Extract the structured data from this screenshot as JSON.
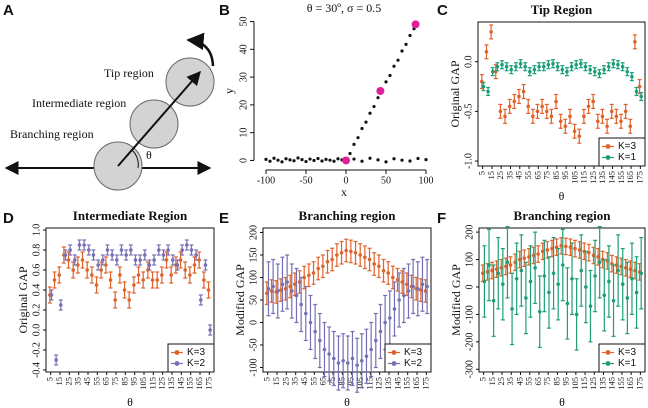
{
  "chart_data": [
    {
      "type": "diagram",
      "panel": "A",
      "labels": [
        "Tip region",
        "Intermediate region",
        "Branching region"
      ],
      "angle_label": "θ"
    },
    {
      "type": "scatter",
      "panel": "B",
      "title": "θ = 30º, σ = 0.5",
      "x_label": "x",
      "y_label": "y",
      "xlim": [
        -110,
        105
      ],
      "xticks": [
        -100,
        -50,
        0,
        50,
        100
      ],
      "ylim": [
        -2,
        52
      ],
      "yticks": [
        0,
        10,
        20,
        30,
        40,
        50
      ],
      "series": [
        {
          "color": "#111111",
          "x": [
            -100,
            -95,
            -90,
            -85,
            -80,
            -75,
            -70,
            -65,
            -60,
            -55,
            -50,
            -45,
            -40,
            -35,
            -30,
            -25,
            -20,
            -15,
            -10,
            -5,
            0,
            5,
            10,
            15,
            20,
            25,
            30,
            35,
            40,
            45,
            50,
            55,
            60,
            65,
            70,
            75,
            80,
            85,
            10,
            20,
            30,
            40,
            50,
            60,
            70,
            80,
            90,
            100
          ],
          "values": [
            0.4,
            -0.3,
            0.8,
            0.1,
            -0.5,
            0.6,
            0.2,
            -0.1,
            0.9,
            0.3,
            -0.4,
            0.5,
            0.0,
            0.7,
            -0.2,
            0.4,
            0.1,
            -0.3,
            0.6,
            0.2,
            0.3,
            2.5,
            5.8,
            8.2,
            11.5,
            13.8,
            17.0,
            19.4,
            22.6,
            25.1,
            28.3,
            30.6,
            33.9,
            36.1,
            39.4,
            41.8,
            45.0,
            47.4,
            0.5,
            -0.3,
            0.8,
            0.2,
            -0.5,
            0.6,
            0.1,
            -0.2,
            0.7,
            0.3
          ]
        },
        {
          "color": "#e0209a",
          "x": [
            0,
            43,
            87
          ],
          "values": [
            0,
            25,
            49
          ]
        }
      ]
    },
    {
      "type": "errorbar",
      "panel": "C",
      "title": "Tip Region",
      "x_label": "θ",
      "y_label": "Original GAP",
      "xlim": [
        0,
        180
      ],
      "xticks": [
        5,
        15,
        25,
        35,
        45,
        55,
        65,
        75,
        85,
        95,
        105,
        115,
        125,
        135,
        145,
        155,
        165,
        175
      ],
      "ylim": [
        -1.05,
        0.4
      ],
      "yticks": [
        {
          "value": -1,
          "label": "-1.0"
        },
        -0.5,
        {
          "value": 0,
          "label": "0.0"
        }
      ],
      "legend": "lower right",
      "x": [
        5,
        10,
        15,
        20,
        25,
        30,
        35,
        40,
        45,
        50,
        55,
        60,
        65,
        70,
        75,
        80,
        85,
        90,
        95,
        100,
        105,
        110,
        115,
        120,
        125,
        130,
        135,
        140,
        145,
        150,
        155,
        160,
        165,
        170,
        175
      ],
      "series": [
        {
          "name": "K=3",
          "color": "#e0622a",
          "values": [
            -0.2,
            0.1,
            0.3,
            -0.1,
            -0.5,
            -0.55,
            -0.45,
            -0.4,
            -0.35,
            -0.3,
            -0.45,
            -0.55,
            -0.5,
            -0.45,
            -0.5,
            -0.55,
            -0.4,
            -0.6,
            -0.65,
            -0.55,
            -0.7,
            -0.75,
            -0.55,
            -0.45,
            -0.4,
            -0.6,
            -0.55,
            -0.65,
            -0.5,
            -0.55,
            -0.6,
            -0.5,
            -0.65,
            0.2,
            -0.25
          ],
          "errors": [
            0.07,
            0.07,
            0.07,
            0.07,
            0.07,
            0.07,
            0.07,
            0.07,
            0.07,
            0.07,
            0.07,
            0.07,
            0.07,
            0.07,
            0.07,
            0.07,
            0.07,
            0.07,
            0.07,
            0.07,
            0.07,
            0.07,
            0.07,
            0.07,
            0.07,
            0.07,
            0.07,
            0.07,
            0.07,
            0.07,
            0.07,
            0.07,
            0.07,
            0.07,
            0.07
          ]
        },
        {
          "name": "K=1",
          "color": "#1e9e78",
          "values": [
            -0.25,
            -0.3,
            -0.1,
            -0.05,
            -0.03,
            -0.05,
            -0.08,
            -0.05,
            -0.02,
            -0.05,
            -0.1,
            -0.08,
            -0.05,
            -0.05,
            -0.03,
            -0.02,
            -0.05,
            -0.08,
            -0.1,
            -0.05,
            -0.03,
            -0.02,
            -0.05,
            -0.08,
            -0.1,
            -0.12,
            -0.08,
            -0.05,
            -0.02,
            -0.03,
            -0.05,
            -0.1,
            -0.15,
            -0.3,
            -0.35
          ],
          "errors": [
            0.04,
            0.04,
            0.04,
            0.04,
            0.04,
            0.04,
            0.04,
            0.04,
            0.04,
            0.04,
            0.04,
            0.04,
            0.04,
            0.04,
            0.04,
            0.04,
            0.04,
            0.04,
            0.04,
            0.04,
            0.04,
            0.04,
            0.04,
            0.04,
            0.04,
            0.04,
            0.04,
            0.04,
            0.04,
            0.04,
            0.04,
            0.04,
            0.04,
            0.04,
            0.04
          ]
        }
      ]
    },
    {
      "type": "errorbar",
      "panel": "D",
      "title": "Intermediate Region",
      "x_label": "θ",
      "y_label": "Original GAP",
      "xlim": [
        0,
        180
      ],
      "xticks": [
        5,
        15,
        25,
        35,
        45,
        55,
        65,
        75,
        85,
        95,
        105,
        115,
        125,
        135,
        145,
        155,
        165,
        175
      ],
      "ylim": [
        -0.42,
        1.02
      ],
      "yticks": [
        -0.4,
        -0.2,
        {
          "value": 0,
          "label": "0.0"
        },
        0.2,
        0.4,
        0.6,
        0.8,
        {
          "value": 1,
          "label": "1.0"
        }
      ],
      "legend": "lower right",
      "x": [
        5,
        10,
        15,
        20,
        25,
        30,
        35,
        40,
        45,
        50,
        55,
        60,
        65,
        70,
        75,
        80,
        85,
        90,
        95,
        100,
        105,
        110,
        115,
        120,
        125,
        130,
        135,
        140,
        145,
        150,
        155,
        160,
        165,
        170,
        175
      ],
      "series": [
        {
          "name": "K=3",
          "color": "#e0622a",
          "values": [
            0.35,
            0.5,
            0.55,
            0.75,
            0.7,
            0.6,
            0.65,
            0.7,
            0.6,
            0.55,
            0.45,
            0.6,
            0.65,
            0.5,
            0.3,
            0.55,
            0.4,
            0.3,
            0.45,
            0.55,
            0.5,
            0.6,
            0.5,
            0.5,
            0.55,
            0.7,
            0.55,
            0.65,
            0.7,
            0.6,
            0.55,
            0.65,
            0.7,
            0.5,
            0.4
          ],
          "errors": [
            0.08,
            0.08,
            0.08,
            0.08,
            0.08,
            0.08,
            0.08,
            0.08,
            0.08,
            0.08,
            0.08,
            0.08,
            0.08,
            0.08,
            0.08,
            0.08,
            0.08,
            0.08,
            0.08,
            0.08,
            0.08,
            0.08,
            0.08,
            0.08,
            0.08,
            0.08,
            0.08,
            0.08,
            0.08,
            0.08,
            0.08,
            0.08,
            0.08,
            0.08,
            0.08
          ]
        },
        {
          "name": "K=2",
          "color": "#7570b3",
          "values": [
            0.35,
            -0.3,
            0.25,
            0.75,
            0.8,
            0.7,
            0.85,
            0.85,
            0.8,
            0.75,
            0.65,
            0.7,
            0.8,
            0.75,
            0.7,
            0.8,
            0.75,
            0.8,
            0.7,
            0.7,
            0.75,
            0.65,
            0.7,
            0.8,
            0.75,
            0.8,
            0.7,
            0.65,
            0.8,
            0.85,
            0.8,
            0.75,
            0.3,
            0.65,
            0.0
          ],
          "errors": [
            0.05,
            0.05,
            0.05,
            0.05,
            0.05,
            0.05,
            0.05,
            0.05,
            0.05,
            0.05,
            0.05,
            0.05,
            0.05,
            0.05,
            0.05,
            0.05,
            0.05,
            0.05,
            0.05,
            0.05,
            0.05,
            0.05,
            0.05,
            0.05,
            0.05,
            0.05,
            0.05,
            0.05,
            0.05,
            0.05,
            0.05,
            0.05,
            0.05,
            0.05,
            0.05
          ]
        }
      ]
    },
    {
      "type": "errorbar",
      "panel": "E",
      "title": "Branching region",
      "x_label": "θ",
      "y_label": "Modified GAP",
      "xlim": [
        0,
        180
      ],
      "xticks": [
        5,
        15,
        25,
        35,
        45,
        55,
        65,
        75,
        85,
        95,
        105,
        115,
        125,
        135,
        145,
        155,
        165,
        175
      ],
      "ylim": [
        -110,
        210
      ],
      "yticks": [
        -100,
        -50,
        0,
        50,
        100,
        150,
        200
      ],
      "legend": "lower right",
      "x": [
        5,
        10,
        15,
        20,
        25,
        30,
        35,
        40,
        45,
        50,
        55,
        60,
        65,
        70,
        75,
        80,
        85,
        90,
        95,
        100,
        105,
        110,
        115,
        120,
        125,
        130,
        135,
        140,
        145,
        150,
        155,
        160,
        165,
        170,
        175
      ],
      "series": [
        {
          "name": "K=3",
          "color": "#e0622a",
          "values": [
            65,
            70,
            68,
            72,
            75,
            80,
            85,
            90,
            100,
            105,
            110,
            120,
            125,
            135,
            140,
            150,
            155,
            160,
            158,
            155,
            150,
            145,
            140,
            130,
            125,
            115,
            110,
            100,
            95,
            90,
            85,
            80,
            75,
            72,
            70
          ],
          "errors": [
            25,
            25,
            25,
            25,
            25,
            25,
            25,
            25,
            25,
            25,
            25,
            25,
            25,
            25,
            25,
            25,
            25,
            25,
            25,
            25,
            25,
            25,
            25,
            25,
            25,
            25,
            25,
            25,
            25,
            25,
            25,
            25,
            25,
            25,
            25
          ]
        },
        {
          "name": "K=2",
          "color": "#7570b3",
          "values": [
            75,
            80,
            70,
            85,
            90,
            70,
            60,
            40,
            20,
            0,
            -20,
            -40,
            -60,
            -70,
            -80,
            -90,
            -85,
            -90,
            -80,
            -95,
            -85,
            -75,
            -60,
            -40,
            -20,
            0,
            10,
            30,
            50,
            60,
            70,
            80,
            75,
            85,
            80
          ],
          "errors": [
            60,
            60,
            60,
            60,
            60,
            60,
            60,
            60,
            60,
            60,
            60,
            60,
            60,
            60,
            60,
            60,
            60,
            60,
            60,
            60,
            60,
            60,
            60,
            60,
            60,
            60,
            60,
            60,
            60,
            60,
            60,
            60,
            60,
            60,
            60
          ]
        }
      ]
    },
    {
      "type": "errorbar",
      "panel": "F",
      "title": "Branching region",
      "x_label": "θ",
      "y_label": "Modified GAP",
      "xlim": [
        0,
        180
      ],
      "xticks": [
        5,
        15,
        25,
        35,
        45,
        55,
        65,
        75,
        85,
        95,
        105,
        115,
        125,
        135,
        145,
        155,
        165,
        175
      ],
      "ylim": [
        -310,
        215
      ],
      "yticks": [
        -300,
        -200,
        -100,
        0,
        100,
        200
      ],
      "legend": "lower right",
      "x": [
        5,
        10,
        15,
        20,
        25,
        30,
        35,
        40,
        45,
        50,
        55,
        60,
        65,
        70,
        75,
        80,
        85,
        90,
        95,
        100,
        105,
        110,
        115,
        120,
        125,
        130,
        135,
        140,
        145,
        150,
        155,
        160,
        165,
        170,
        175
      ],
      "series": [
        {
          "name": "K=3",
          "color": "#e0622a",
          "values": [
            50,
            55,
            60,
            65,
            70,
            75,
            80,
            90,
            100,
            105,
            110,
            115,
            120,
            130,
            135,
            140,
            145,
            150,
            148,
            145,
            140,
            135,
            130,
            125,
            115,
            110,
            100,
            95,
            85,
            80,
            75,
            70,
            65,
            60,
            55
          ],
          "errors": [
            30,
            30,
            30,
            30,
            30,
            30,
            30,
            30,
            30,
            30,
            30,
            30,
            30,
            30,
            30,
            30,
            30,
            30,
            30,
            30,
            30,
            30,
            30,
            30,
            30,
            30,
            30,
            30,
            30,
            30,
            30,
            30,
            30,
            30,
            30
          ]
        },
        {
          "name": "K=1",
          "color": "#1e9e78",
          "values": [
            20,
            80,
            -50,
            50,
            10,
            90,
            -80,
            30,
            60,
            -40,
            20,
            70,
            -90,
            40,
            -20,
            50,
            10,
            80,
            -60,
            30,
            -100,
            60,
            0,
            -70,
            40,
            90,
            -30,
            20,
            -50,
            60,
            10,
            -40,
            30,
            -20,
            50
          ],
          "errors": [
            130,
            130,
            130,
            130,
            130,
            130,
            130,
            130,
            130,
            130,
            130,
            130,
            130,
            130,
            130,
            130,
            130,
            130,
            130,
            130,
            130,
            130,
            130,
            130,
            130,
            130,
            130,
            130,
            130,
            130,
            130,
            130,
            130,
            130,
            130
          ]
        }
      ]
    }
  ]
}
